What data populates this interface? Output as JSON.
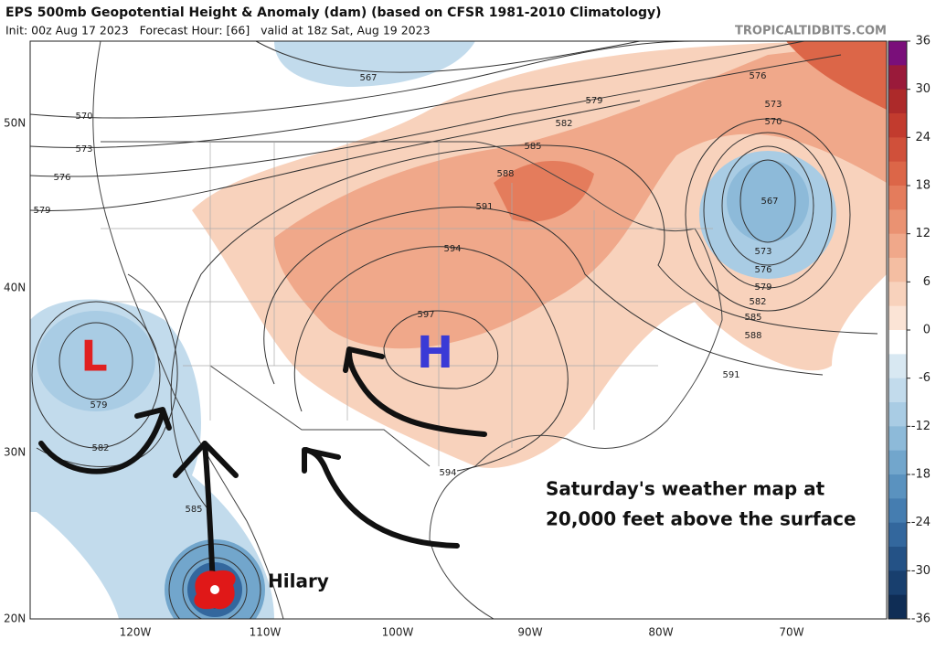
{
  "header": {
    "title": "EPS 500mb Geopotential Height & Anomaly (dam) (based on CFSR 1981-2010 Climatology)",
    "subtitle": "Init: 00z Aug 17 2023   Forecast Hour: [66]   valid at 18z Sat, Aug 19 2023",
    "source": "TROPICALTIDBITS.COM"
  },
  "map": {
    "lat_labels": [
      "50N",
      "40N",
      "30N",
      "20N"
    ],
    "lon_labels": [
      "120W",
      "110W",
      "100W",
      "90W",
      "80W",
      "70W"
    ],
    "contour_labels": [
      567,
      570,
      573,
      576,
      579,
      579,
      582,
      585,
      588,
      591,
      594,
      597,
      576,
      573,
      570,
      567,
      573,
      576,
      579,
      582,
      585,
      588,
      591,
      579,
      582,
      585,
      594
    ],
    "annotations": {
      "low": "L",
      "high": "H",
      "storm": "Hilary",
      "caption": [
        "Saturday's weather map at",
        "20,000 feet above the surface"
      ]
    }
  },
  "colorbar": {
    "ticks": [
      36,
      30,
      24,
      18,
      12,
      6,
      0,
      -6,
      -12,
      -18,
      -24,
      -30,
      -36
    ],
    "range": [
      -36,
      36
    ],
    "colors": [
      "#7a0f7a",
      "#9a1a3a",
      "#ad2a2a",
      "#c23b2e",
      "#d0503a",
      "#dc6648",
      "#e47c5c",
      "#ea9272",
      "#f0a88a",
      "#f4bea2",
      "#f8d2bc",
      "#fbe4d6",
      "#ffffff",
      "#d8e8f2",
      "#c2dbec",
      "#a9cce4",
      "#8dbad9",
      "#72a6cc",
      "#5a92bf",
      "#457db0",
      "#33679d",
      "#245286",
      "#183f6e",
      "#0f2d55"
    ]
  }
}
